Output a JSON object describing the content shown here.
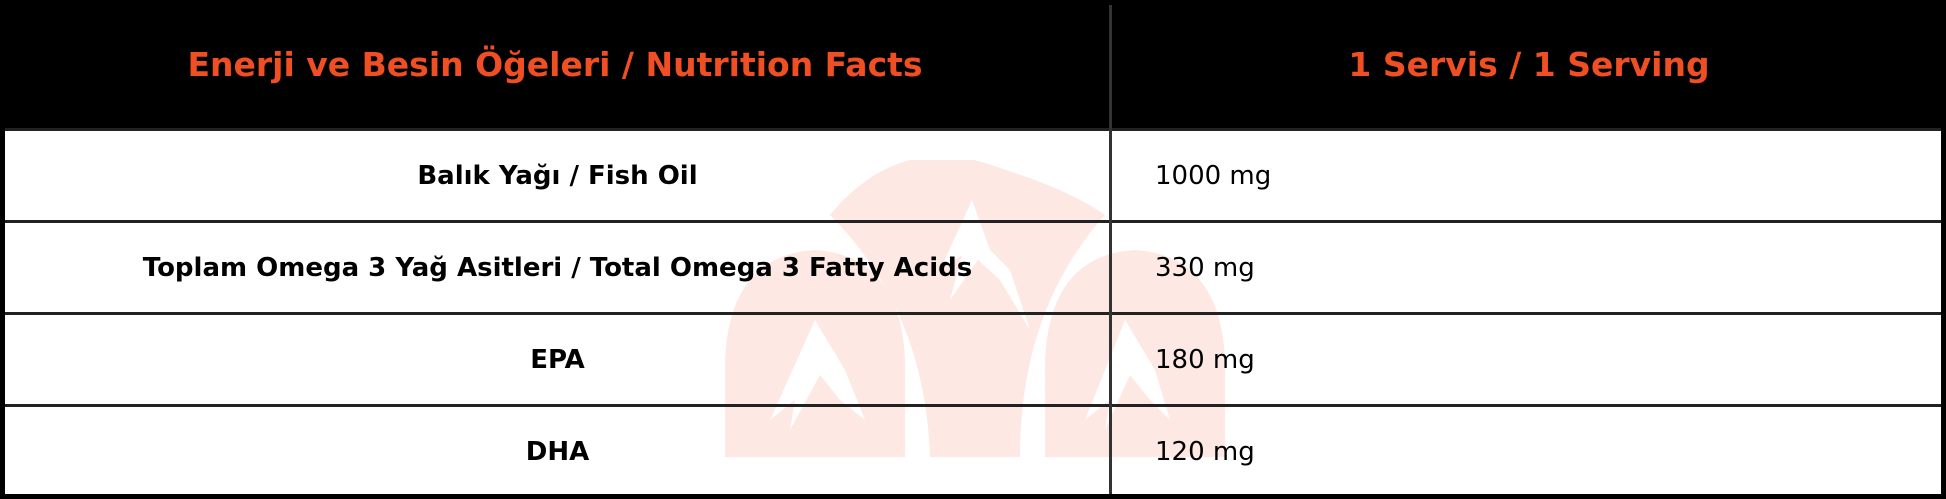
{
  "colors": {
    "header_bg": "#000000",
    "header_text": "#f04e23",
    "watermark": "#fde8e3"
  },
  "header": {
    "col1": "Enerji ve Besin Öğeleri / Nutrition Facts",
    "col2": "1 Servis / 1 Serving"
  },
  "rows": [
    {
      "name": "Balık Yağı / Fish Oil",
      "value": "1000 mg"
    },
    {
      "name": "Toplam Omega 3 Yağ Asitleri / Total Omega 3 Fatty Acids",
      "value": "330 mg"
    },
    {
      "name": "EPA",
      "value": "180 mg"
    },
    {
      "name": "DHA",
      "value": "120 mg"
    }
  ],
  "watermark_icon": "mountain-logo-icon"
}
